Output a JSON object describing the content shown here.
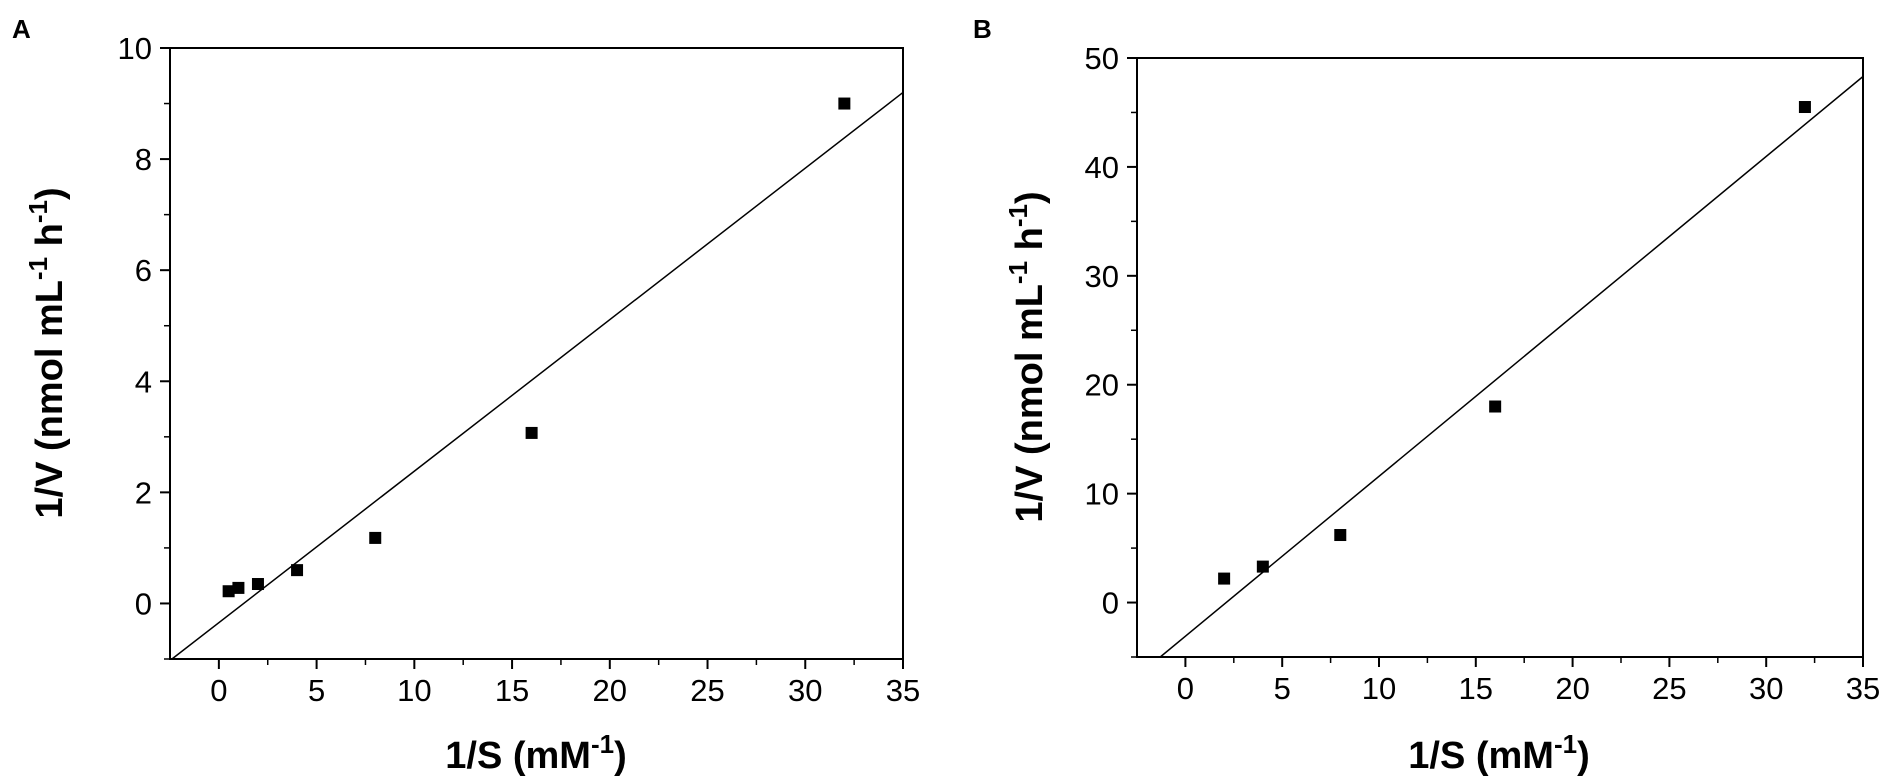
{
  "chart_data": [
    {
      "panel": "A",
      "type": "scatter",
      "xlabel": {
        "main": "1/S (mM",
        "sup": "-1",
        "tail": ")"
      },
      "ylabel": {
        "main": "1/V (nmol mL",
        "sup1": "-1",
        "mid": " h",
        "sup2": "-1",
        "tail": ")"
      },
      "xlim": [
        -2.5,
        35
      ],
      "ylim": [
        -1,
        10
      ],
      "xticks": [
        0,
        5,
        10,
        15,
        20,
        25,
        30,
        35
      ],
      "yticks": [
        0,
        2,
        4,
        6,
        8,
        10
      ],
      "points": [
        {
          "x": 0.5,
          "y": 0.22
        },
        {
          "x": 1,
          "y": 0.28
        },
        {
          "x": 2,
          "y": 0.35
        },
        {
          "x": 4,
          "y": 0.6
        },
        {
          "x": 8,
          "y": 1.18
        },
        {
          "x": 16,
          "y": 3.07
        },
        {
          "x": 32,
          "y": 9.0
        }
      ],
      "fit_line": {
        "x": [
          -2.4,
          35
        ],
        "y": [
          -1.0,
          9.2
        ]
      },
      "grid": false,
      "marker": "square"
    },
    {
      "panel": "B",
      "type": "scatter",
      "xlabel": {
        "main": "1/S (mM",
        "sup": "-1",
        "tail": ")"
      },
      "ylabel": {
        "main": "1/V (nmol mL",
        "sup1": "-1",
        "mid": " h",
        "sup2": "-1",
        "tail": ")"
      },
      "xlim": [
        -2.5,
        35
      ],
      "ylim": [
        -5,
        50
      ],
      "xticks": [
        0,
        5,
        10,
        15,
        20,
        25,
        30,
        35
      ],
      "yticks": [
        0,
        10,
        20,
        30,
        40,
        50
      ],
      "points": [
        {
          "x": 2,
          "y": 2.2
        },
        {
          "x": 4,
          "y": 3.3
        },
        {
          "x": 8,
          "y": 6.2
        },
        {
          "x": 16,
          "y": 18.0
        },
        {
          "x": 32,
          "y": 45.5
        }
      ],
      "fit_line": {
        "x": [
          -1.3,
          35
        ],
        "y": [
          -5.0,
          48.3
        ]
      },
      "grid": false,
      "marker": "square"
    }
  ]
}
